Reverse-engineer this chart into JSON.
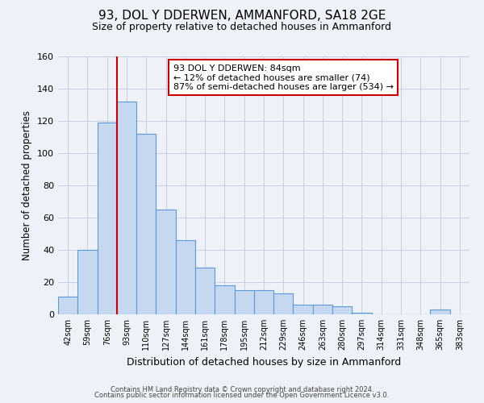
{
  "title_line1": "93, DOL Y DDERWEN, AMMANFORD, SA18 2GE",
  "title_line2": "Size of property relative to detached houses in Ammanford",
  "xlabel": "Distribution of detached houses by size in Ammanford",
  "ylabel": "Number of detached properties",
  "bar_labels": [
    "42sqm",
    "59sqm",
    "76sqm",
    "93sqm",
    "110sqm",
    "127sqm",
    "144sqm",
    "161sqm",
    "178sqm",
    "195sqm",
    "212sqm",
    "229sqm",
    "246sqm",
    "263sqm",
    "280sqm",
    "297sqm",
    "314sqm",
    "331sqm",
    "348sqm",
    "365sqm",
    "383sqm"
  ],
  "bar_values": [
    11,
    40,
    119,
    132,
    112,
    65,
    46,
    29,
    18,
    15,
    15,
    13,
    6,
    6,
    5,
    1,
    0,
    0,
    0,
    3,
    0
  ],
  "bar_color": "#c5d8f0",
  "bar_edge_color": "#5b9bd5",
  "annotation_line1": "93 DOL Y DDERWEN: 84sqm",
  "annotation_line2": "← 12% of detached houses are smaller (74)",
  "annotation_line3": "87% of semi-detached houses are larger (534) →",
  "ylim": [
    0,
    160
  ],
  "yticks": [
    0,
    20,
    40,
    60,
    80,
    100,
    120,
    140,
    160
  ],
  "annotation_box_color": "#ffffff",
  "annotation_box_edge_color": "#cc0000",
  "red_line_color": "#cc0000",
  "background_color": "#eef2f8",
  "grid_color": "#c8cfe0",
  "footnote_line1": "Contains HM Land Registry data © Crown copyright and database right 2024.",
  "footnote_line2": "Contains public sector information licensed under the Open Government Licence v3.0."
}
